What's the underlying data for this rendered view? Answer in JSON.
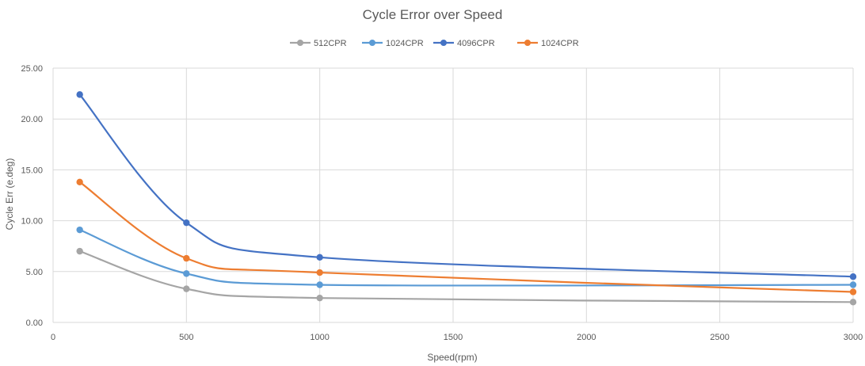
{
  "chart_data": {
    "type": "scatter",
    "title": "Cycle Error over Speed",
    "xlabel": "Speed(rpm)",
    "ylabel": "Cycle Err (e.deg)",
    "xlim": [
      0,
      3000
    ],
    "ylim": [
      0,
      25
    ],
    "xticks": [
      0,
      500,
      1000,
      1500,
      2000,
      2500,
      3000
    ],
    "xtick_labels": [
      "0",
      "500",
      "1000",
      "1500",
      "2000",
      "2500",
      "3000"
    ],
    "yticks": [
      0,
      5,
      10,
      15,
      20,
      25
    ],
    "ytick_labels": [
      "0.00",
      "5.00",
      "10.00",
      "15.00",
      "20.00",
      "25.00"
    ],
    "grid": true,
    "legend_position": "top",
    "smooth_lines": true,
    "x": [
      100,
      500,
      1000,
      3000
    ],
    "series": [
      {
        "name": "512CPR",
        "color": "#a5a5a5",
        "values": [
          7.0,
          3.3,
          2.4,
          2.0
        ]
      },
      {
        "name": "1024CPR",
        "color": "#5b9bd5",
        "values": [
          9.1,
          4.8,
          3.7,
          3.7
        ]
      },
      {
        "name": "4096CPR",
        "color": "#4472c4",
        "values": [
          22.4,
          9.8,
          6.4,
          4.5
        ]
      },
      {
        "name": "1024CPR",
        "color": "#ed7d31",
        "values": [
          13.8,
          6.3,
          4.9,
          3.0
        ]
      }
    ]
  }
}
